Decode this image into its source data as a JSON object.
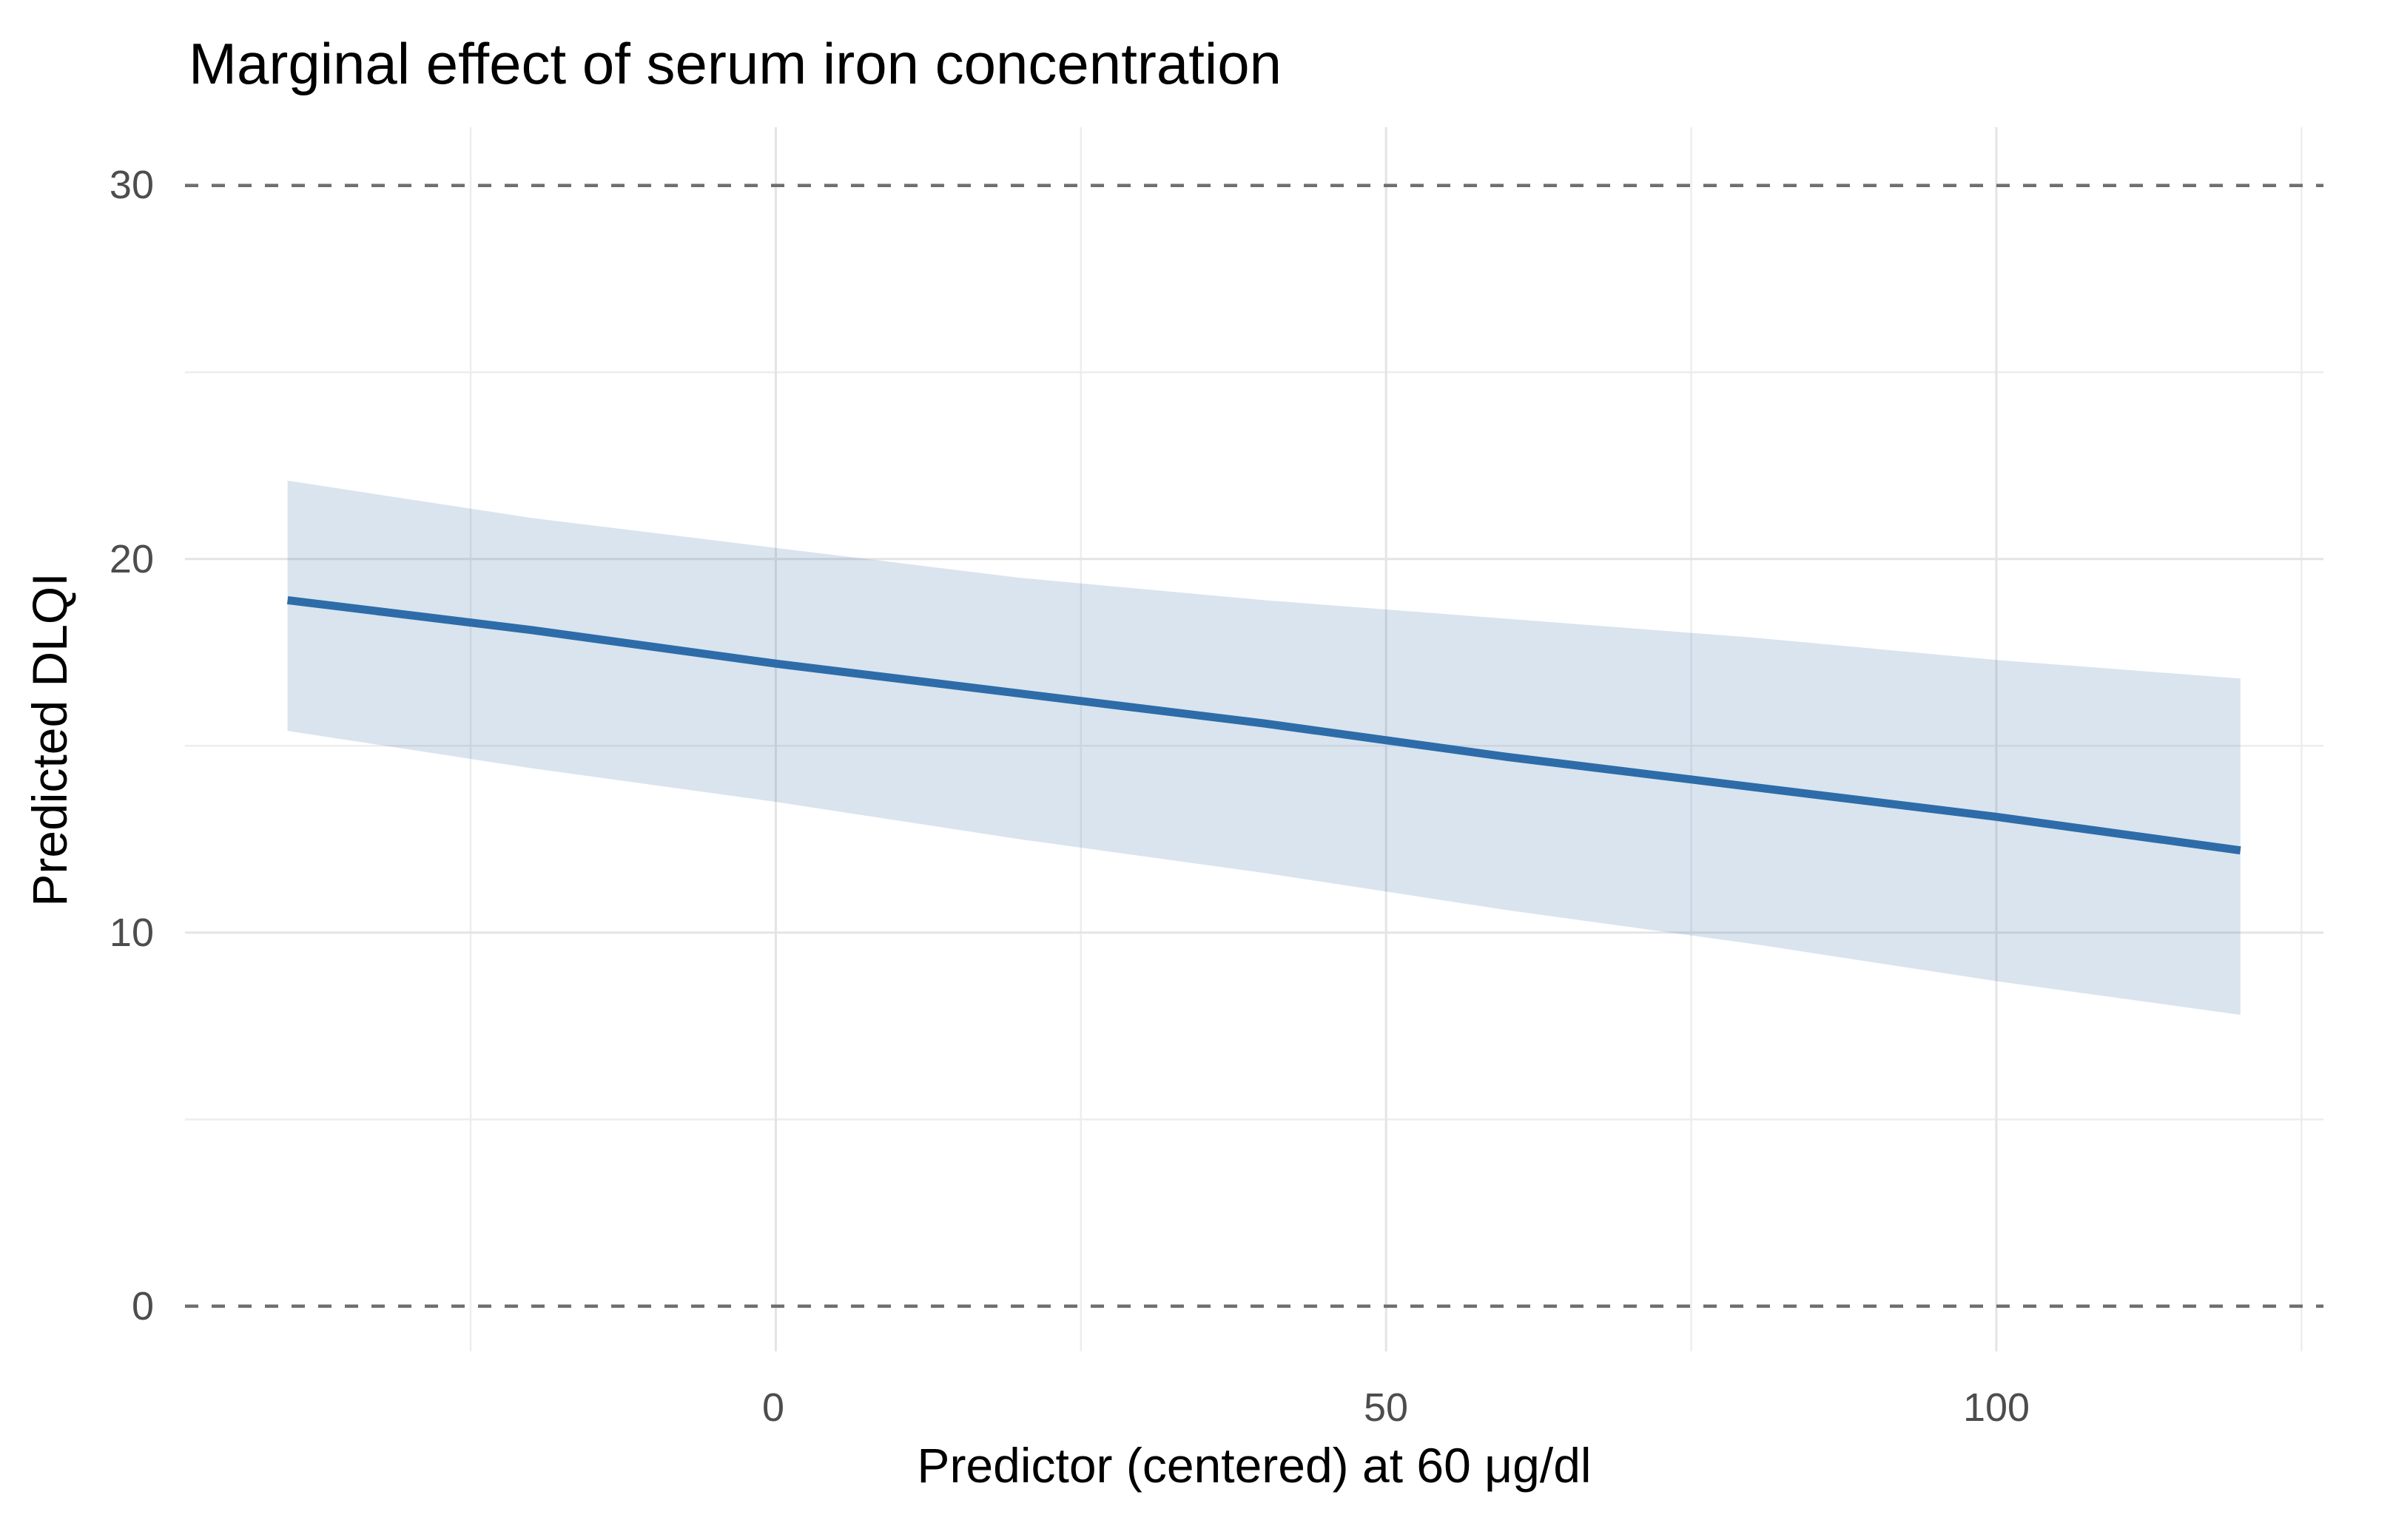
{
  "chart": {
    "title": "Marginal effect of serum iron concentration",
    "x_axis": {
      "label": "Predictor (centered) at 60 μg/dl",
      "tick_labels": [
        "0",
        "50",
        "100"
      ]
    },
    "y_axis": {
      "label": "Predicted DLQI",
      "tick_labels": [
        "30",
        "20",
        "10",
        "0"
      ]
    }
  },
  "colors": {
    "line": "#2d6ca8",
    "ribbon_fill": "#2d6ca8",
    "grid_major": "#e4e4e4",
    "grid_minor": "#ededed",
    "reference_line": "#6f6f6f",
    "tick_text": "#4d4d4d",
    "title_text": "#000000",
    "background": "#ffffff"
  },
  "chart_data": {
    "type": "line",
    "title": "Marginal effect of serum iron concentration",
    "xlabel": "Predictor (centered) at 60 μg/dl",
    "ylabel": "Predicted DLQI",
    "x": [
      -40,
      -20,
      0,
      20,
      40,
      60,
      80,
      100,
      120
    ],
    "series": [
      {
        "name": "predicted",
        "values": [
          18.9,
          18.1,
          17.2,
          16.4,
          15.6,
          14.7,
          13.9,
          13.1,
          12.2
        ]
      },
      {
        "name": "ci_upper",
        "values": [
          22.1,
          21.1,
          20.3,
          19.5,
          18.9,
          18.4,
          17.9,
          17.3,
          16.8
        ]
      },
      {
        "name": "ci_lower",
        "values": [
          15.4,
          14.4,
          13.5,
          12.5,
          11.6,
          10.6,
          9.7,
          8.7,
          7.8
        ]
      }
    ],
    "x_ticks": [
      0,
      50,
      100
    ],
    "y_ticks": [
      0,
      10,
      20,
      30
    ],
    "x_minor_grid": [
      -25,
      25,
      75,
      125
    ],
    "y_minor_grid": [
      5,
      15,
      25
    ],
    "y_major_grid": [
      10,
      20
    ],
    "reference_lines_y": [
      0,
      30
    ],
    "xlim": [
      -48.4,
      126.8
    ],
    "ylim": [
      -1.21,
      31.56
    ],
    "grid": true,
    "legend_position": "none",
    "ribbon_opacity": 0.18
  }
}
